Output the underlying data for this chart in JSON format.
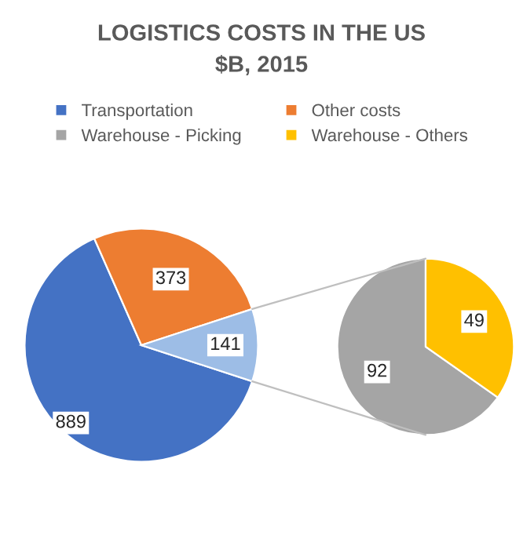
{
  "chart_data": [
    {
      "type": "pie",
      "title": "LOGISTICS COSTS IN THE US",
      "subtitle": "$B, 2015",
      "categories": [
        "Transportation",
        "Other costs",
        null
      ],
      "values": [
        889,
        373,
        141
      ],
      "colors": [
        "#4472c4",
        "#ed7d31",
        "#9dbde6"
      ],
      "data_labels": true,
      "legend": "top"
    },
    {
      "type": "pie",
      "categories": [
        "Warehouse - Picking",
        "Warehouse - Others"
      ],
      "values": [
        92,
        49
      ],
      "colors": [
        "#a5a5a5",
        "#ffc000"
      ],
      "data_labels": true,
      "legend": "top"
    }
  ]
}
